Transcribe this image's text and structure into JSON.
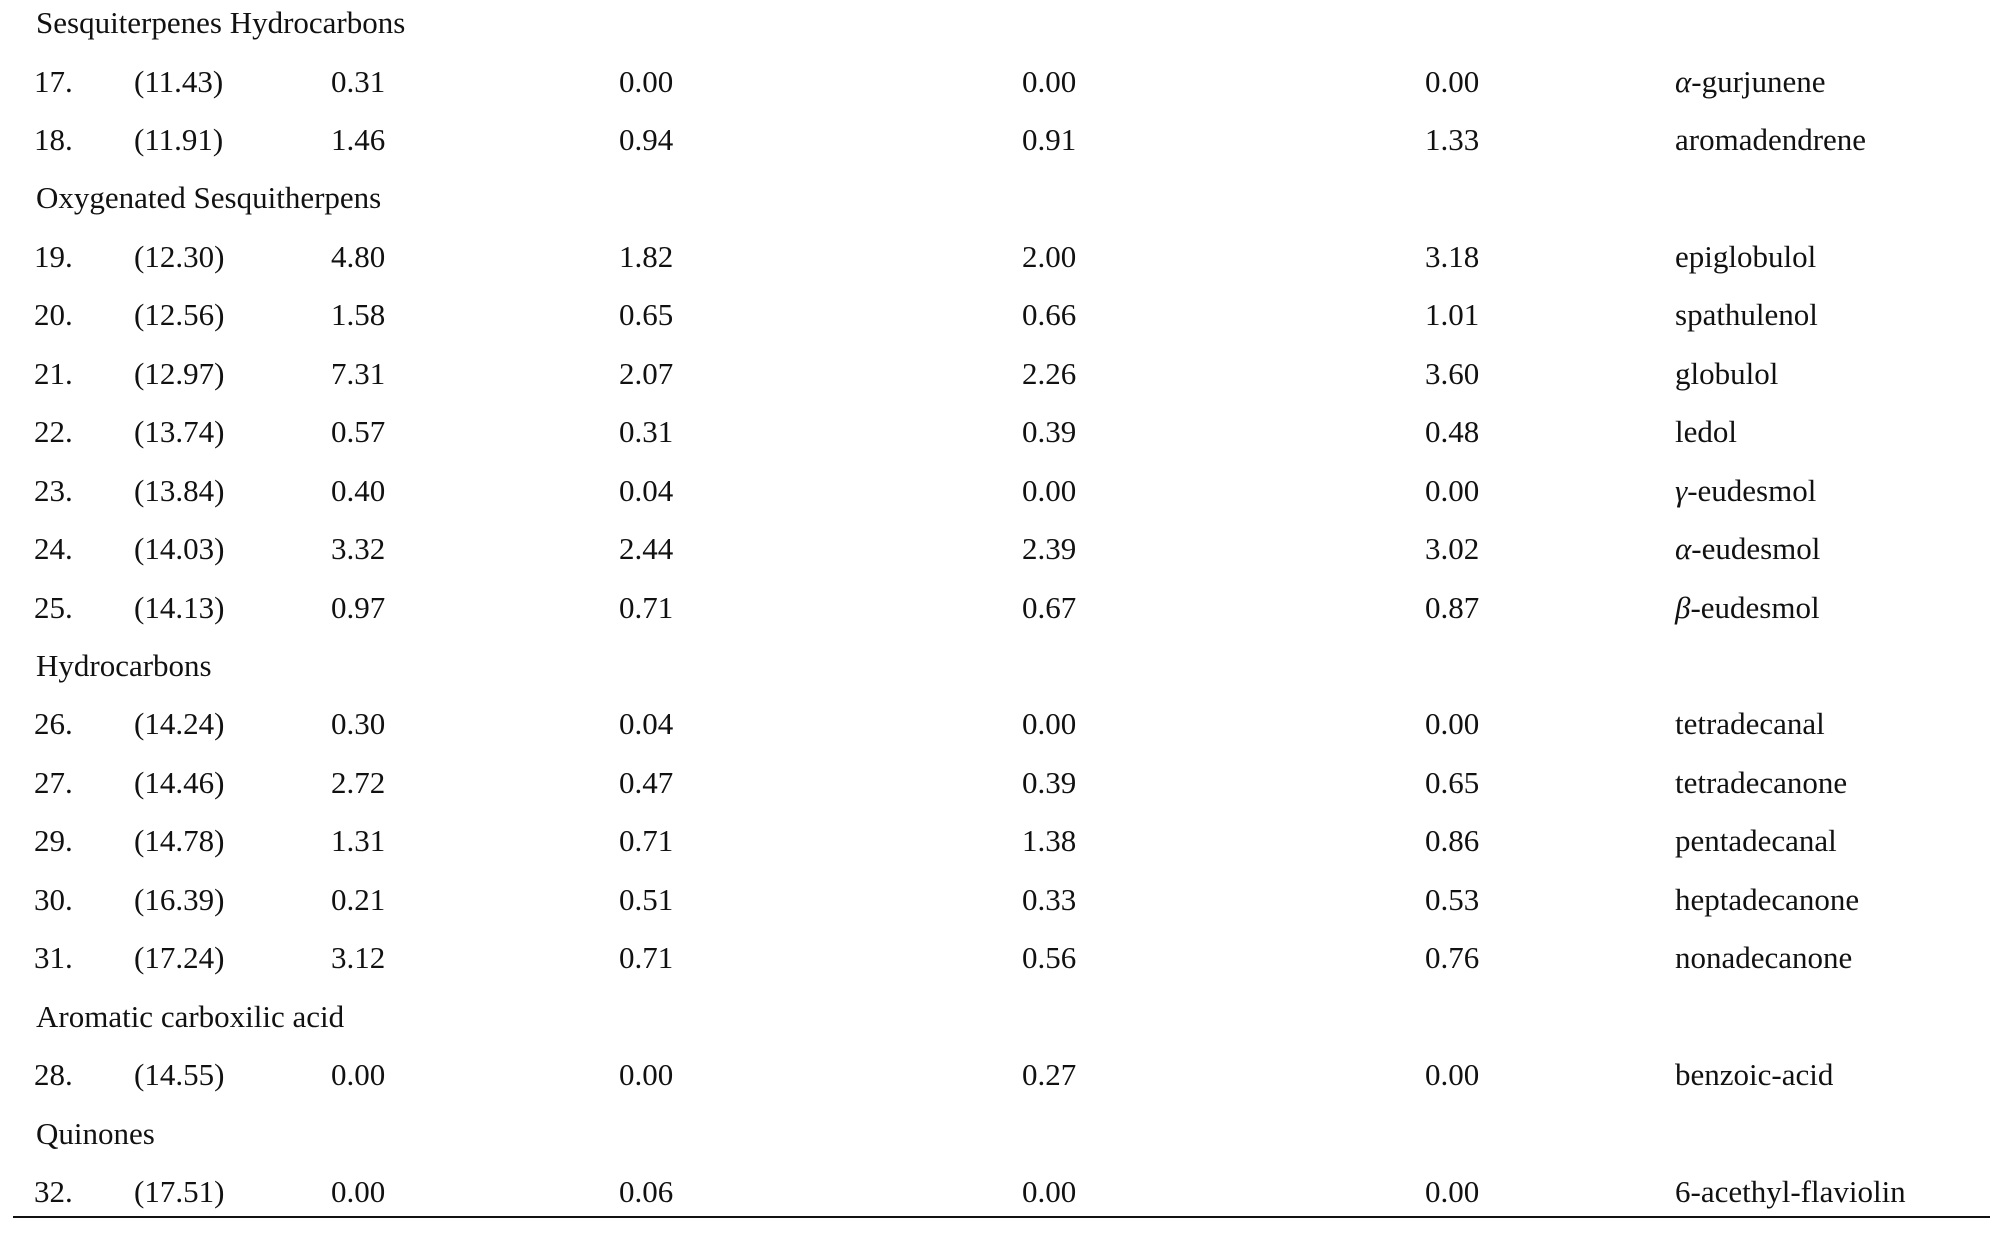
{
  "rows": [
    {
      "type": "section",
      "label": "Sesquiterpenes Hydrocarbons"
    },
    {
      "type": "data",
      "num": "17.",
      "rt": "(11.43)",
      "v1": "0.31",
      "v2": "0.00",
      "v3": "0.00",
      "v4": "0.00",
      "prefix": "α",
      "name": "-gurjunene"
    },
    {
      "type": "data",
      "num": "18.",
      "rt": "(11.91)",
      "v1": "1.46",
      "v2": "0.94",
      "v3": "0.91",
      "v4": "1.33",
      "prefix": "",
      "name": "aromadendrene"
    },
    {
      "type": "section",
      "label": "Oxygenated Sesquitherpens"
    },
    {
      "type": "data",
      "num": "19.",
      "rt": "(12.30)",
      "v1": "4.80",
      "v2": "1.82",
      "v3": "2.00",
      "v4": "3.18",
      "prefix": "",
      "name": "epiglobulol"
    },
    {
      "type": "data",
      "num": "20.",
      "rt": "(12.56)",
      "v1": "1.58",
      "v2": "0.65",
      "v3": "0.66",
      "v4": "1.01",
      "prefix": "",
      "name": "spathulenol"
    },
    {
      "type": "data",
      "num": "21.",
      "rt": "(12.97)",
      "v1": "7.31",
      "v2": "2.07",
      "v3": "2.26",
      "v4": "3.60",
      "prefix": "",
      "name": "globulol"
    },
    {
      "type": "data",
      "num": "22.",
      "rt": "(13.74)",
      "v1": "0.57",
      "v2": "0.31",
      "v3": "0.39",
      "v4": "0.48",
      "prefix": "",
      "name": "ledol"
    },
    {
      "type": "data",
      "num": "23.",
      "rt": "(13.84)",
      "v1": "0.40",
      "v2": "0.04",
      "v3": "0.00",
      "v4": "0.00",
      "prefix": "γ",
      "name": "-eudesmol"
    },
    {
      "type": "data",
      "num": "24.",
      "rt": "(14.03)",
      "v1": "3.32",
      "v2": "2.44",
      "v3": "2.39",
      "v4": "3.02",
      "prefix": "α",
      "name": "-eudesmol"
    },
    {
      "type": "data",
      "num": "25.",
      "rt": "(14.13)",
      "v1": "0.97",
      "v2": "0.71",
      "v3": "0.67",
      "v4": "0.87",
      "prefix": "β",
      "name": "-eudesmol"
    },
    {
      "type": "section",
      "label": "Hydrocarbons"
    },
    {
      "type": "data",
      "num": "26.",
      "rt": "(14.24)",
      "v1": "0.30",
      "v2": "0.04",
      "v3": "0.00",
      "v4": "0.00",
      "prefix": "",
      "name": "tetradecanal"
    },
    {
      "type": "data",
      "num": "27.",
      "rt": "(14.46)",
      "v1": "2.72",
      "v2": "0.47",
      "v3": "0.39",
      "v4": "0.65",
      "prefix": "",
      "name": "tetradecanone"
    },
    {
      "type": "data",
      "num": "29.",
      "rt": "(14.78)",
      "v1": "1.31",
      "v2": "0.71",
      "v3": "1.38",
      "v4": "0.86",
      "prefix": "",
      "name": "pentadecanal"
    },
    {
      "type": "data",
      "num": "30.",
      "rt": "(16.39)",
      "v1": "0.21",
      "v2": "0.51",
      "v3": "0.33",
      "v4": "0.53",
      "prefix": "",
      "name": "heptadecanone"
    },
    {
      "type": "data",
      "num": "31.",
      "rt": "(17.24)",
      "v1": "3.12",
      "v2": "0.71",
      "v3": "0.56",
      "v4": "0.76",
      "prefix": "",
      "name": "nonadecanone"
    },
    {
      "type": "section",
      "label": "Aromatic carboxilic acid"
    },
    {
      "type": "data",
      "num": "28.",
      "rt": "(14.55)",
      "v1": "0.00",
      "v2": "0.00",
      "v3": "0.27",
      "v4": "0.00",
      "prefix": "",
      "name": "benzoic-acid"
    },
    {
      "type": "section",
      "label": "Quinones"
    },
    {
      "type": "data",
      "num": "32.",
      "rt": "(17.51)",
      "v1": "0.00",
      "v2": "0.06",
      "v3": "0.00",
      "v4": "0.00",
      "prefix": "",
      "name": "6-acethyl-flaviolin"
    }
  ]
}
